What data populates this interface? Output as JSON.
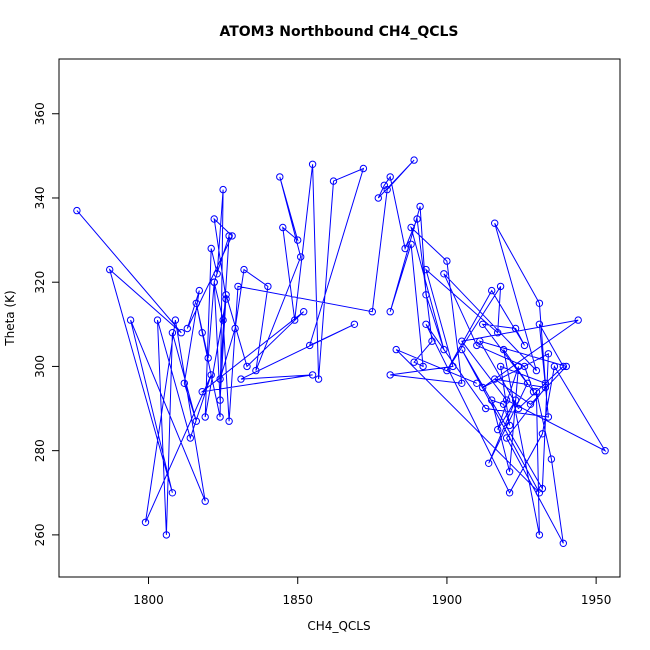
{
  "chart_data": {
    "type": "line",
    "title": "ATOM3 Northbound CH4_QCLS",
    "xlabel": "CH4_QCLS",
    "ylabel": "Theta (K)",
    "xlim": [
      1770,
      1958
    ],
    "ylim": [
      250,
      373
    ],
    "x_ticks": [
      1800,
      1850,
      1900,
      1950
    ],
    "y_ticks": [
      260,
      280,
      300,
      320,
      340,
      360
    ],
    "grid": false,
    "legend": "none",
    "marker": "open-circle",
    "color": "#0000ff",
    "series": [
      {
        "x": [
          1776,
          1811,
          1787,
          1808,
          1794,
          1819,
          1809,
          1799,
          1821,
          1814,
          1803,
          1806,
          1808,
          1816,
          1812,
          1817,
          1813,
          1828,
          1822,
          1826,
          1819,
          1821,
          1823,
          1825,
          1824,
          1818,
          1816,
          1820,
          1822,
          1827,
          1824,
          1829,
          1832,
          1840,
          1836,
          1851,
          1844,
          1850,
          1845,
          1849,
          1855,
          1857,
          1862,
          1872,
          1854,
          1869,
          1831,
          1855,
          1818,
          1852,
          1833,
          1826,
          1824,
          1822,
          1825,
          1827,
          1830,
          1875,
          1880,
          1889,
          1877,
          1879,
          1881,
          1886,
          1890,
          1895,
          1889,
          1892,
          1888,
          1881,
          1891,
          1893,
          1899,
          1888,
          1900,
          1905,
          1881,
          1902,
          1893,
          1917,
          1918,
          1900,
          1915,
          1926,
          1923,
          1912,
          1929,
          1926,
          1910,
          1899,
          1930,
          1916,
          1931,
          1933,
          1918,
          1921,
          1919,
          1915,
          1921,
          1924,
          1917,
          1923,
          1914,
          1927,
          1919,
          1931,
          1930,
          1935,
          1939,
          1920,
          1933,
          1916,
          1928,
          1940,
          1911,
          1924,
          1939,
          1931,
          1934,
          1913,
          1893,
          1921,
          1932,
          1936,
          1953,
          1920,
          1905,
          1944,
          1912,
          1934,
          1932,
          1905,
          1931,
          1883,
          1910
        ],
        "y": [
          337,
          308,
          323,
          270,
          311,
          268,
          311,
          263,
          298,
          283,
          311,
          260,
          308,
          287,
          296,
          318,
          309,
          331,
          335,
          316,
          288,
          328,
          322,
          342,
          288,
          308,
          315,
          302,
          320,
          331,
          297,
          309,
          323,
          319,
          299,
          326,
          345,
          330,
          333,
          311,
          348,
          297,
          344,
          347,
          305,
          310,
          297,
          298,
          294,
          313,
          300,
          317,
          292,
          320,
          311,
          287,
          319,
          313,
          342,
          349,
          340,
          343,
          345,
          328,
          335,
          306,
          301,
          300,
          329,
          313,
          338,
          317,
          304,
          333,
          325,
          296,
          298,
          300,
          323,
          308,
          319,
          299,
          318,
          305,
          309,
          310,
          294,
          300,
          305,
          322,
          299,
          334,
          315,
          296,
          300,
          286,
          291,
          292,
          275,
          300,
          285,
          292,
          277,
          296,
          304,
          260,
          294,
          278,
          258,
          283,
          295,
          297,
          291,
          300,
          306,
          290,
          300,
          310,
          288,
          290,
          310,
          270,
          284,
          300,
          280,
          292,
          306,
          311,
          295,
          303,
          271,
          304,
          270,
          304,
          296
        ]
      }
    ]
  }
}
